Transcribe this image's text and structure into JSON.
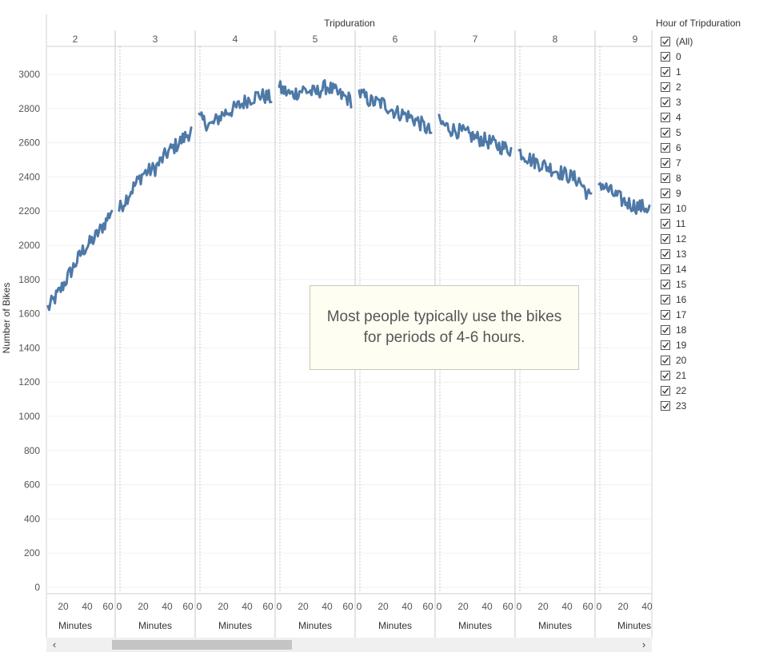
{
  "chart_data": {
    "type": "line",
    "column_header": "Tripduration",
    "ylabel": "Number of Bikes",
    "ylim": [
      0,
      3150
    ],
    "yticks": [
      0,
      200,
      400,
      600,
      800,
      1000,
      1200,
      1400,
      1600,
      1800,
      2000,
      2200,
      2400,
      2600,
      2800,
      3000
    ],
    "line_color": "#4e79a7",
    "panels": [
      {
        "hour": "2",
        "minute_ticks": [
          "20",
          "40",
          "60"
        ],
        "xlabel": "Minutes",
        "x": [
          0,
          10,
          20,
          30,
          40,
          50,
          55
        ],
        "y": [
          1630,
          1730,
          1850,
          1970,
          2040,
          2140,
          2210
        ]
      },
      {
        "hour": "3",
        "minute_ticks": [
          "0",
          "20",
          "40",
          "60"
        ],
        "xlabel": "Minutes",
        "x": [
          0,
          10,
          20,
          30,
          40,
          50,
          60
        ],
        "y": [
          2210,
          2320,
          2420,
          2450,
          2540,
          2600,
          2670
        ]
      },
      {
        "hour": "4",
        "minute_ticks": [
          "0",
          "20",
          "40",
          "60"
        ],
        "xlabel": "Minutes",
        "x": [
          0,
          10,
          20,
          30,
          40,
          50,
          60
        ],
        "y": [
          2740,
          2700,
          2770,
          2800,
          2850,
          2880,
          2860
        ]
      },
      {
        "hour": "5",
        "minute_ticks": [
          "0",
          "20",
          "40",
          "60"
        ],
        "xlabel": "Minutes",
        "x": [
          0,
          10,
          20,
          30,
          40,
          50,
          60
        ],
        "y": [
          2920,
          2880,
          2910,
          2890,
          2930,
          2880,
          2850
        ]
      },
      {
        "hour": "6",
        "minute_ticks": [
          "0",
          "20",
          "40",
          "60"
        ],
        "xlabel": "Minutes",
        "x": [
          0,
          10,
          20,
          30,
          40,
          50,
          60
        ],
        "y": [
          2890,
          2840,
          2830,
          2780,
          2760,
          2720,
          2660
        ]
      },
      {
        "hour": "7",
        "minute_ticks": [
          "0",
          "20",
          "40",
          "60"
        ],
        "xlabel": "Minutes",
        "x": [
          0,
          10,
          20,
          30,
          40,
          50,
          60
        ],
        "y": [
          2720,
          2680,
          2660,
          2630,
          2610,
          2580,
          2560
        ]
      },
      {
        "hour": "8",
        "minute_ticks": [
          "0",
          "20",
          "40",
          "60"
        ],
        "xlabel": "Minutes",
        "x": [
          0,
          10,
          20,
          30,
          40,
          50,
          60
        ],
        "y": [
          2550,
          2500,
          2470,
          2440,
          2410,
          2380,
          2270
        ]
      },
      {
        "hour": "9",
        "minute_ticks": [
          "0",
          "20",
          "40"
        ],
        "xlabel": "Minutes",
        "x": [
          0,
          10,
          20,
          30,
          40,
          45
        ],
        "y": [
          2370,
          2310,
          2260,
          2230,
          2220,
          2200
        ]
      }
    ]
  },
  "annotation": {
    "text": "Most people typically use the bikes for periods of 4-6 hours."
  },
  "legend": {
    "title": "Hour of Tripduration",
    "items": [
      "(All)",
      "0",
      "1",
      "2",
      "3",
      "4",
      "5",
      "6",
      "7",
      "8",
      "9",
      "10",
      "11",
      "12",
      "13",
      "14",
      "15",
      "16",
      "17",
      "18",
      "19",
      "20",
      "21",
      "22",
      "23"
    ],
    "checked": true
  },
  "scrollbar": {
    "left_arrow": "‹",
    "right_arrow": "›"
  }
}
